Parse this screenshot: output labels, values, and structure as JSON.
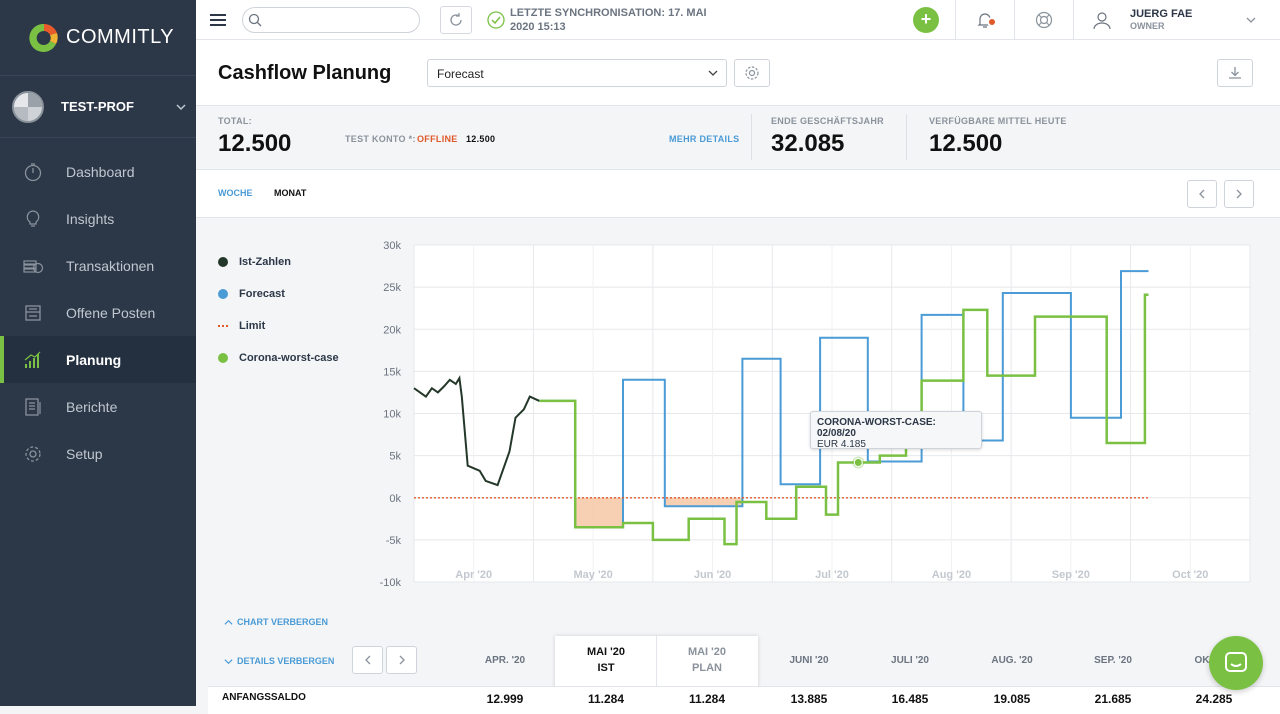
{
  "app": {
    "name": "COMMITLY"
  },
  "profile": {
    "name": "TEST-PROF"
  },
  "nav": {
    "items": [
      {
        "label": "Dashboard",
        "icon": "stopwatch-icon"
      },
      {
        "label": "Insights",
        "icon": "lightbulb-icon"
      },
      {
        "label": "Transaktionen",
        "icon": "coins-icon"
      },
      {
        "label": "Offene Posten",
        "icon": "inbox-icon"
      },
      {
        "label": "Planung",
        "icon": "bar-chart-icon",
        "active": true
      },
      {
        "label": "Berichte",
        "icon": "report-icon"
      },
      {
        "label": "Setup",
        "icon": "gear-icon"
      }
    ]
  },
  "topbar": {
    "sync_line1": "LETZTE SYNCHRONISATION: 17. MAI",
    "sync_line2": "2020 15:13",
    "user_name": "JUERG FAE",
    "user_role": "OWNER"
  },
  "header": {
    "title": "Cashflow Planung",
    "select_value": "Forecast"
  },
  "summary": {
    "total_label": "TOTAL:",
    "total_value": "12.500",
    "account_label": "TEST KONTO *:",
    "account_status": "OFFLINE",
    "account_value": "12.500",
    "more_details": "MEHR DETAILS",
    "year_end_label": "ENDE GESCHÄFTSJAHR",
    "year_end_value": "32.085",
    "available_label": "VERFÜGBARE MITTEL HEUTE",
    "available_value": "12.500"
  },
  "tabs": {
    "week": "WOCHE",
    "month": "MONAT"
  },
  "legend": {
    "actual": "Ist-Zahlen",
    "forecast": "Forecast",
    "limit": "Limit",
    "worst": "Corona-worst-case"
  },
  "colors": {
    "actual": "#24382a",
    "forecast": "#4a9bd6",
    "limit": "#e0592a",
    "worst": "#7ac143",
    "accent": "#7ac143"
  },
  "chart_data": {
    "type": "line",
    "ylim": [
      -10000,
      30000
    ],
    "y_ticks": [
      "30k",
      "25k",
      "20k",
      "15k",
      "10k",
      "5k",
      "0k",
      "-5k",
      "-10k"
    ],
    "x_ticks": [
      "Apr '20",
      "May '20",
      "Jun '20",
      "Jul '20",
      "Aug '20",
      "Sep '20",
      "Oct '20"
    ],
    "tooltip": {
      "title": "CORONA-WORST-CASE: 02/08/20",
      "value": "EUR 4.185"
    },
    "series": [
      {
        "name": "Ist-Zahlen",
        "points": [
          [
            0.0,
            13000
          ],
          [
            0.05,
            12500
          ],
          [
            0.1,
            12000
          ],
          [
            0.15,
            13000
          ],
          [
            0.2,
            12500
          ],
          [
            0.25,
            13200
          ],
          [
            0.3,
            14000
          ],
          [
            0.35,
            13500
          ],
          [
            0.38,
            14200
          ],
          [
            0.4,
            12000
          ],
          [
            0.45,
            3800
          ],
          [
            0.55,
            3200
          ],
          [
            0.6,
            2000
          ],
          [
            0.7,
            1500
          ],
          [
            0.8,
            5500
          ],
          [
            0.85,
            9500
          ],
          [
            0.92,
            10500
          ],
          [
            0.97,
            12000
          ],
          [
            1.05,
            11500
          ]
        ]
      },
      {
        "name": "Forecast",
        "points": [
          [
            1.05,
            11500
          ],
          [
            1.35,
            11500
          ],
          [
            1.35,
            -3500
          ],
          [
            1.75,
            -3500
          ],
          [
            1.75,
            14000
          ],
          [
            2.1,
            14000
          ],
          [
            2.1,
            -1000
          ],
          [
            2.75,
            -1000
          ],
          [
            2.75,
            16500
          ],
          [
            3.07,
            16500
          ],
          [
            3.07,
            1600
          ],
          [
            3.4,
            1600
          ],
          [
            3.4,
            19000
          ],
          [
            3.8,
            19000
          ],
          [
            3.8,
            4300
          ],
          [
            4.25,
            4300
          ],
          [
            4.25,
            21700
          ],
          [
            4.6,
            21700
          ],
          [
            4.6,
            6800
          ],
          [
            4.93,
            6800
          ],
          [
            4.93,
            24300
          ],
          [
            5.5,
            24300
          ],
          [
            5.5,
            9500
          ],
          [
            5.92,
            9500
          ],
          [
            5.92,
            26900
          ],
          [
            6.15,
            26900
          ]
        ]
      },
      {
        "name": "Limit",
        "points": [
          [
            0,
            0
          ],
          [
            6.15,
            0
          ]
        ]
      },
      {
        "name": "Corona-worst-case",
        "points": [
          [
            1.05,
            11500
          ],
          [
            1.35,
            11500
          ],
          [
            1.35,
            -3500
          ],
          [
            1.75,
            -3500
          ],
          [
            1.75,
            -3000
          ],
          [
            2.0,
            -3000
          ],
          [
            2.0,
            -5000
          ],
          [
            2.3,
            -5000
          ],
          [
            2.3,
            -2500
          ],
          [
            2.6,
            -2500
          ],
          [
            2.6,
            -5500
          ],
          [
            2.7,
            -5500
          ],
          [
            2.7,
            -500
          ],
          [
            2.95,
            -500
          ],
          [
            2.95,
            -2500
          ],
          [
            3.2,
            -2500
          ],
          [
            3.2,
            1300
          ],
          [
            3.45,
            1300
          ],
          [
            3.45,
            -2000
          ],
          [
            3.55,
            -2000
          ],
          [
            3.55,
            4185
          ],
          [
            3.9,
            4185
          ],
          [
            3.9,
            5000
          ],
          [
            4.12,
            5000
          ],
          [
            4.12,
            6000
          ],
          [
            4.25,
            6000
          ],
          [
            4.25,
            13900
          ],
          [
            4.6,
            13900
          ],
          [
            4.6,
            22300
          ],
          [
            4.8,
            22300
          ],
          [
            4.8,
            14500
          ],
          [
            5.2,
            14500
          ],
          [
            5.2,
            21500
          ],
          [
            5.8,
            21500
          ],
          [
            5.8,
            6500
          ],
          [
            6.12,
            6500
          ],
          [
            6.12,
            24100
          ],
          [
            6.15,
            24100
          ]
        ]
      }
    ]
  },
  "toggles": {
    "chart": "CHART VERBERGEN",
    "details": "DETAILS VERBERGEN"
  },
  "table": {
    "columns": [
      {
        "l1": "APR. '20",
        "l2": ""
      },
      {
        "l1": "MAI '20",
        "l2": "IST"
      },
      {
        "l1": "MAI '20",
        "l2": "PLAN"
      },
      {
        "l1": "JUNI '20",
        "l2": ""
      },
      {
        "l1": "JULI '20",
        "l2": ""
      },
      {
        "l1": "AUG. '20",
        "l2": ""
      },
      {
        "l1": "SEP. '20",
        "l2": ""
      },
      {
        "l1": "OKT. '20",
        "l2": ""
      }
    ],
    "row_label": "ANFANGSSALDO",
    "row_values": [
      "12.999",
      "11.284",
      "11.284",
      "13.885",
      "16.485",
      "19.085",
      "21.685",
      "24.285"
    ]
  }
}
